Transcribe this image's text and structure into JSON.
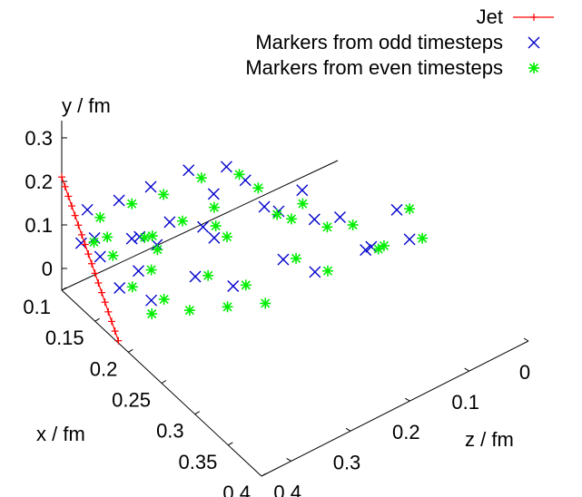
{
  "chart_data": {
    "type": "scatter",
    "subtype": "3d-scatter",
    "view": "perspective",
    "axes": {
      "x": {
        "label": "x / fm",
        "range": [
          0.1,
          0.4
        ],
        "ticks": [
          "0.1",
          "0.15",
          "0.2",
          "0.25",
          "0.3",
          "0.35",
          "0.4"
        ]
      },
      "y": {
        "label": "y / fm",
        "range": [
          -0.05,
          0.3
        ],
        "ticks": [
          "0",
          "0.1",
          "0.2",
          "0.3"
        ]
      },
      "z": {
        "label": "z / fm",
        "range": [
          0,
          0.45
        ],
        "ticks": [
          "0",
          "0.1",
          "0.2",
          "0.3",
          "0.4"
        ]
      }
    },
    "legend": {
      "position": "top-right",
      "entries": [
        {
          "label": "Jet",
          "marker": "plus-line",
          "color": "#ff0000"
        },
        {
          "label": "Markers from odd timesteps",
          "marker": "cross",
          "color": "#0000cc"
        },
        {
          "label": "Markers from even timesteps",
          "marker": "star",
          "color": "#00ee00"
        }
      ]
    },
    "series": [
      {
        "name": "Jet",
        "style": "line+plus",
        "color": "#ff0000",
        "points": [
          [
            0.1,
            0.21,
            0.0
          ],
          [
            0.105,
            0.195,
            0.0
          ],
          [
            0.11,
            0.18,
            0.0
          ],
          [
            0.115,
            0.165,
            0.0
          ],
          [
            0.12,
            0.15,
            0.0
          ],
          [
            0.125,
            0.135,
            0.0
          ],
          [
            0.13,
            0.12,
            0.0
          ],
          [
            0.135,
            0.105,
            0.0
          ],
          [
            0.14,
            0.09,
            0.0
          ],
          [
            0.145,
            0.075,
            0.0
          ],
          [
            0.15,
            0.06,
            0.0
          ],
          [
            0.155,
            0.045,
            0.0
          ],
          [
            0.16,
            0.03,
            0.0
          ],
          [
            0.165,
            0.015,
            0.0
          ],
          [
            0.17,
            0.0,
            0.0
          ],
          [
            0.175,
            -0.015,
            0.0
          ],
          [
            0.18,
            -0.03,
            0.0
          ],
          [
            0.185,
            -0.045,
            0.0
          ]
        ]
      },
      {
        "name": "Markers from odd timesteps",
        "style": "cross",
        "color": "#0000cc",
        "points": [
          [
            0.12,
            0.15,
            0.02
          ],
          [
            0.14,
            0.18,
            0.05
          ],
          [
            0.16,
            0.22,
            0.08
          ],
          [
            0.18,
            0.26,
            0.12
          ],
          [
            0.15,
            0.1,
            0.06
          ],
          [
            0.17,
            0.14,
            0.1
          ],
          [
            0.19,
            0.2,
            0.15
          ],
          [
            0.21,
            0.24,
            0.18
          ],
          [
            0.13,
            0.05,
            0.03
          ],
          [
            0.16,
            0.08,
            0.09
          ],
          [
            0.2,
            0.12,
            0.14
          ],
          [
            0.22,
            0.18,
            0.2
          ],
          [
            0.24,
            0.22,
            0.24
          ],
          [
            0.26,
            0.16,
            0.28
          ],
          [
            0.28,
            0.1,
            0.3
          ],
          [
            0.23,
            0.06,
            0.22
          ],
          [
            0.19,
            0.03,
            0.12
          ],
          [
            0.15,
            0.0,
            0.04
          ],
          [
            0.17,
            -0.02,
            0.07
          ],
          [
            0.21,
            0.01,
            0.16
          ],
          [
            0.25,
            0.04,
            0.25
          ],
          [
            0.27,
            0.08,
            0.32
          ],
          [
            0.3,
            0.12,
            0.35
          ],
          [
            0.29,
            0.18,
            0.34
          ],
          [
            0.14,
            0.12,
            0.01
          ],
          [
            0.18,
            0.16,
            0.04
          ],
          [
            0.22,
            0.2,
            0.1
          ],
          [
            0.26,
            0.24,
            0.18
          ],
          [
            0.2,
            0.27,
            0.16
          ],
          [
            0.24,
            0.14,
            0.26
          ],
          [
            0.12,
            0.08,
            0.01
          ],
          [
            0.16,
            0.04,
            0.06
          ]
        ]
      },
      {
        "name": "Markers from even timesteps",
        "style": "star",
        "color": "#00ee00",
        "points": [
          [
            0.13,
            0.14,
            0.03
          ],
          [
            0.15,
            0.18,
            0.06
          ],
          [
            0.17,
            0.21,
            0.09
          ],
          [
            0.19,
            0.25,
            0.13
          ],
          [
            0.16,
            0.11,
            0.07
          ],
          [
            0.18,
            0.15,
            0.11
          ],
          [
            0.2,
            0.19,
            0.14
          ],
          [
            0.22,
            0.23,
            0.19
          ],
          [
            0.14,
            0.06,
            0.04
          ],
          [
            0.17,
            0.09,
            0.08
          ],
          [
            0.21,
            0.13,
            0.15
          ],
          [
            0.23,
            0.17,
            0.21
          ],
          [
            0.25,
            0.21,
            0.23
          ],
          [
            0.27,
            0.15,
            0.29
          ],
          [
            0.29,
            0.11,
            0.31
          ],
          [
            0.24,
            0.07,
            0.23
          ],
          [
            0.2,
            0.04,
            0.13
          ],
          [
            0.16,
            0.01,
            0.05
          ],
          [
            0.18,
            -0.01,
            0.08
          ],
          [
            0.22,
            0.02,
            0.17
          ],
          [
            0.26,
            0.05,
            0.26
          ],
          [
            0.28,
            0.09,
            0.33
          ],
          [
            0.31,
            0.13,
            0.36
          ],
          [
            0.3,
            0.19,
            0.35
          ],
          [
            0.15,
            0.13,
            0.02
          ],
          [
            0.19,
            0.17,
            0.05
          ],
          [
            0.23,
            0.21,
            0.11
          ],
          [
            0.27,
            0.23,
            0.19
          ],
          [
            0.21,
            0.26,
            0.17
          ],
          [
            0.25,
            0.13,
            0.27
          ],
          [
            0.13,
            0.09,
            0.02
          ],
          [
            0.17,
            0.05,
            0.07
          ],
          [
            0.18,
            -0.03,
            0.06
          ],
          [
            0.2,
            -0.02,
            0.1
          ],
          [
            0.22,
            -0.01,
            0.14
          ],
          [
            0.24,
            0.0,
            0.18
          ]
        ]
      }
    ],
    "grid": false
  }
}
